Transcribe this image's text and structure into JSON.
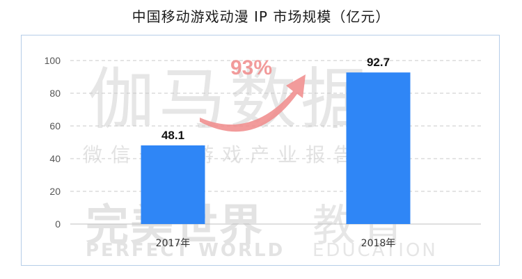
{
  "title": "中国移动游戏动漫 IP 市场规模（亿元）",
  "watermark": {
    "brand_cn": "伽马数据",
    "wechat": "微信号：游戏产业报告",
    "pw_cn": "完美世界",
    "pw_en": "PERFECT WORLD",
    "edu_cn": "教育",
    "edu_en": "EDUCATION"
  },
  "growth_label": "93%",
  "colors": {
    "bar": "#2f86f6",
    "grid": "#c8c8c8",
    "arrow": "#f08a8a",
    "frame": "#b5cde8"
  },
  "chart_data": {
    "type": "bar",
    "title": "中国移动游戏动漫 IP 市场规模（亿元）",
    "categories": [
      "2017年",
      "2018年"
    ],
    "values": [
      48.1,
      92.7
    ],
    "value_labels": [
      "48.1",
      "92.7"
    ],
    "ylim": [
      0,
      100
    ],
    "yticks": [
      0,
      20,
      40,
      60,
      80,
      100
    ],
    "xlabel": "",
    "ylabel": "",
    "grid": true,
    "legend": "none"
  }
}
